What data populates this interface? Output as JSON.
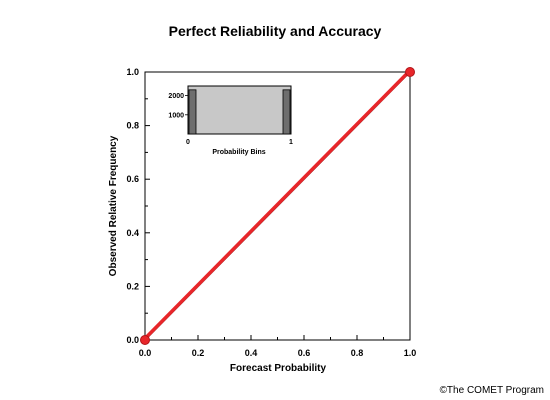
{
  "chart_data": {
    "type": "line",
    "title": "Perfect Reliability and Accuracy",
    "xlabel": "Forecast Probability",
    "ylabel": "Observed Relative Frequency",
    "xlim": [
      0,
      1
    ],
    "ylim": [
      0,
      1
    ],
    "x_ticks": [
      "0.0",
      "0.2",
      "0.4",
      "0.6",
      "0.8",
      "1.0"
    ],
    "y_ticks": [
      "0.0",
      "0.2",
      "0.4",
      "0.6",
      "0.8",
      "1.0"
    ],
    "grid": false,
    "series": [
      {
        "name": "",
        "color": "#e8262a",
        "points": [
          {
            "x": 0.0,
            "y": 0.0
          },
          {
            "x": 1.0,
            "y": 1.0
          }
        ]
      }
    ],
    "diagonal_color": "#000000",
    "inset": {
      "type": "bar",
      "xlabel": "Probability Bins",
      "x_ticks": [
        "0",
        "1"
      ],
      "y_ticks": [
        "1000",
        "2000"
      ],
      "ylim": [
        0,
        2500
      ],
      "background_color": "#c8c8c8",
      "bar_color": "#6e6e6e",
      "bars": [
        {
          "x": 0.0,
          "value": 2300
        },
        {
          "x": 1.0,
          "value": 2300
        }
      ]
    }
  },
  "credit": "©The COMET Program"
}
